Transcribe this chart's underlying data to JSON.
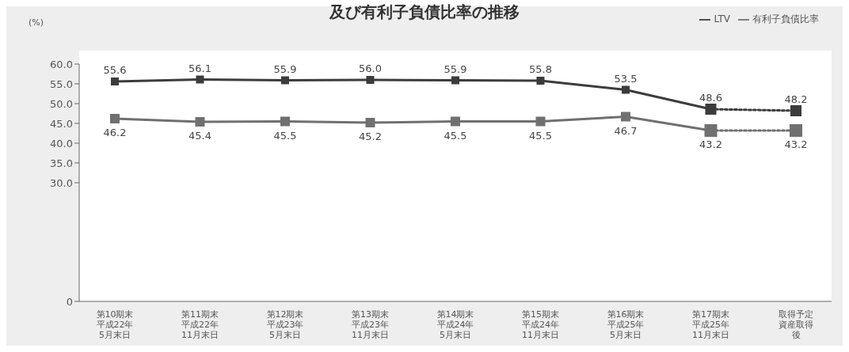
{
  "chart_data": {
    "type": "line",
    "title": "及び有利子負債比率の推移",
    "ylabel": "(%)",
    "categories": [
      "第10期末平成22年5月末日",
      "第11期末平成22年11月末日",
      "第12期末平成23年5月末日",
      "第13期末平成23年11月末日",
      "第14期末平成24年5月末日",
      "第15期末平成24年11月末日",
      "第16期末平成25年5月末日",
      "第17期末平成25年11月末日",
      "取得予定資産取得後"
    ],
    "series": [
      {
        "name": "LTV",
        "color": "#3c3c3c",
        "values": [
          55.6,
          56.1,
          55.9,
          56.0,
          55.9,
          55.8,
          53.5,
          48.6,
          null
        ],
        "value_labels": [
          "55.6",
          "56.1",
          "55.9",
          "56.0",
          "55.9",
          "55.8",
          "53.5",
          "48.6",
          null
        ],
        "line_style": "solid"
      },
      {
        "name": "有利子負債比率",
        "color": "#707070",
        "values": [
          46.2,
          45.4,
          45.5,
          45.2,
          45.5,
          45.5,
          46.7,
          43.2,
          null
        ],
        "line_style": "solid"
      },
      {
        "color": "#3c3c3c",
        "values": [
          null,
          null,
          null,
          null,
          null,
          null,
          null,
          48.6,
          48.2
        ],
        "line_style": "dotted",
        "value_labels": [
          null,
          null,
          null,
          null,
          null,
          null,
          null,
          null,
          "48.2"
        ]
      },
      {
        "color": "#707070",
        "values": [
          null,
          null,
          null,
          null,
          null,
          null,
          null,
          43.2,
          43.2
        ],
        "line_style": "dotted",
        "value_labels": [
          null,
          null,
          null,
          null,
          null,
          null,
          null,
          null,
          "43.2"
        ]
      }
    ],
    "ylim": [
      0,
      60
    ],
    "yticks": [
      0,
      {
        "value": 30,
        "label": "30.0"
      },
      {
        "value": 35,
        "label": "35.0"
      },
      {
        "value": 40,
        "label": "40.0"
      },
      {
        "value": 45,
        "label": "45.0"
      },
      {
        "value": 50,
        "label": "50.0"
      },
      {
        "value": 55,
        "label": "55.0"
      },
      {
        "value": 60,
        "label": "60.0"
      }
    ],
    "data_labels": true,
    "marker": "square",
    "legend": "top right",
    "grid": false
  }
}
